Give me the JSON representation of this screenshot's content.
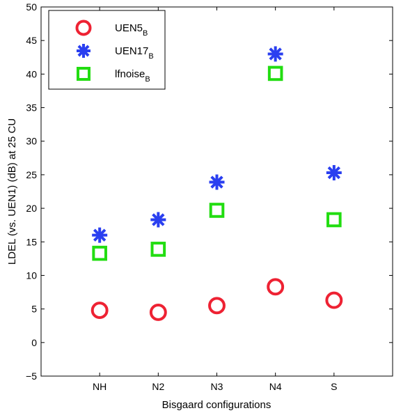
{
  "chart_data": {
    "type": "scatter",
    "title": "",
    "xlabel": "Bisgaard configurations",
    "ylabel": "LDEL (vs. UEN1) (dB) at 25 CU",
    "categories": [
      "NH",
      "N2",
      "N3",
      "N4",
      "S"
    ],
    "xlim": [
      0,
      6
    ],
    "ylim": [
      -5,
      50
    ],
    "yticks": [
      -5,
      0,
      5,
      10,
      15,
      20,
      25,
      30,
      35,
      40,
      45,
      50
    ],
    "ytick_labels": [
      "−5",
      "0",
      "5",
      "10",
      "15",
      "20",
      "25",
      "30",
      "35",
      "40",
      "45",
      "50"
    ],
    "grid": false,
    "legend_position": "top-left",
    "series": [
      {
        "name": "UEN5",
        "name_subscript": "B",
        "marker": "circle",
        "color": "#ee2233",
        "values": [
          4.8,
          4.5,
          5.5,
          8.3,
          6.3
        ]
      },
      {
        "name": "UEN17",
        "name_subscript": "B",
        "marker": "asterisk",
        "color": "#2a3ff0",
        "values": [
          16.0,
          18.3,
          23.9,
          43.0,
          25.3
        ]
      },
      {
        "name": "lfnoise",
        "name_subscript": "B",
        "marker": "square",
        "color": "#22dd11",
        "values": [
          13.3,
          13.9,
          19.7,
          40.1,
          18.3
        ]
      }
    ]
  }
}
